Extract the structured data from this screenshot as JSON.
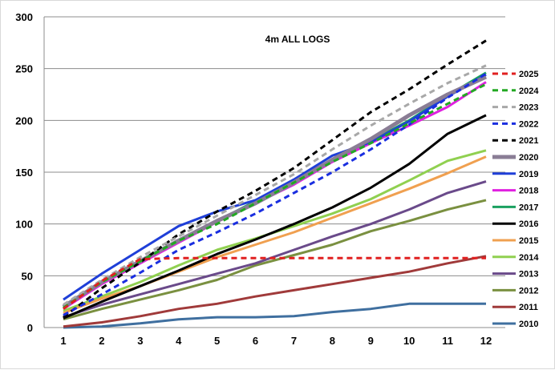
{
  "chart_data": {
    "type": "line",
    "title": "4m  ALL LOGS",
    "xlabel": "",
    "ylabel": "",
    "ylim": [
      0,
      300
    ],
    "yticks": [
      0,
      50,
      100,
      150,
      200,
      250,
      300
    ],
    "x": [
      1,
      2,
      3,
      4,
      5,
      6,
      7,
      8,
      9,
      10,
      11,
      12
    ],
    "grid": "horizontal",
    "legend_position": "right",
    "series": [
      {
        "name": "2025",
        "color": "#e02020",
        "dashed": true,
        "width": 3,
        "values": [
          18,
          45,
          66,
          67,
          67,
          67,
          67,
          67,
          67,
          67,
          67,
          67
        ]
      },
      {
        "name": "2024",
        "color": "#22a822",
        "dashed": true,
        "width": 3,
        "values": [
          19,
          44,
          64,
          84,
          100,
          120,
          140,
          160,
          178,
          197,
          216,
          235
        ]
      },
      {
        "name": "2023",
        "color": "#a8a8a8",
        "dashed": true,
        "width": 3,
        "values": [
          22,
          46,
          68,
          88,
          108,
          128,
          148,
          172,
          195,
          216,
          236,
          253
        ]
      },
      {
        "name": "2022",
        "color": "#1a2ee0",
        "dashed": true,
        "width": 3,
        "values": [
          12,
          32,
          53,
          75,
          92,
          110,
          130,
          150,
          172,
          196,
          222,
          245
        ]
      },
      {
        "name": "2021",
        "color": "#000000",
        "dashed": true,
        "width": 3,
        "values": [
          10,
          38,
          63,
          90,
          112,
          132,
          154,
          181,
          208,
          230,
          254,
          277
        ]
      },
      {
        "name": "2020",
        "color": "#8a7d95",
        "dashed": false,
        "width": 5,
        "values": [
          20,
          44,
          64,
          84,
          103,
          120,
          140,
          162,
          182,
          205,
          225,
          242
        ]
      },
      {
        "name": "2019",
        "color": "#1f3fd8",
        "dashed": false,
        "width": 3,
        "values": [
          27,
          52,
          75,
          98,
          112,
          123,
          143,
          166,
          179,
          199,
          223,
          244
        ]
      },
      {
        "name": "2018",
        "color": "#e020e0",
        "dashed": false,
        "width": 3,
        "values": [
          18,
          42,
          62,
          82,
          102,
          120,
          138,
          160,
          178,
          195,
          213,
          237
        ]
      },
      {
        "name": "2017",
        "color": "#1aa060",
        "dashed": false,
        "width": 3,
        "values": [
          19,
          43,
          64,
          84,
          103,
          122,
          142,
          162,
          180,
          200,
          224,
          246
        ]
      },
      {
        "name": "2016",
        "color": "#000000",
        "dashed": false,
        "width": 3,
        "values": [
          9,
          25,
          40,
          55,
          71,
          85,
          100,
          116,
          135,
          158,
          187,
          205
        ]
      },
      {
        "name": "2015",
        "color": "#f0a050",
        "dashed": false,
        "width": 3,
        "values": [
          14,
          28,
          40,
          54,
          68,
          80,
          92,
          106,
          120,
          134,
          149,
          165
        ]
      },
      {
        "name": "2014",
        "color": "#90d050",
        "dashed": false,
        "width": 3,
        "values": [
          16,
          30,
          44,
          60,
          75,
          86,
          98,
          110,
          124,
          142,
          161,
          171
        ]
      },
      {
        "name": "2013",
        "color": "#6a4a8a",
        "dashed": false,
        "width": 3,
        "values": [
          10,
          22,
          32,
          42,
          52,
          62,
          75,
          88,
          100,
          114,
          130,
          141
        ]
      },
      {
        "name": "2012",
        "color": "#7a9040",
        "dashed": false,
        "width": 3,
        "values": [
          8,
          18,
          27,
          36,
          46,
          60,
          70,
          80,
          93,
          103,
          114,
          123
        ]
      },
      {
        "name": "2011",
        "color": "#a03a3a",
        "dashed": false,
        "width": 3,
        "values": [
          1,
          5,
          11,
          18,
          23,
          30,
          36,
          42,
          48,
          54,
          62,
          69
        ]
      },
      {
        "name": "2010",
        "color": "#3f6f9f",
        "dashed": false,
        "width": 3,
        "values": [
          0,
          1,
          4,
          8,
          10,
          10,
          11,
          15,
          18,
          23,
          23,
          23
        ]
      }
    ]
  }
}
